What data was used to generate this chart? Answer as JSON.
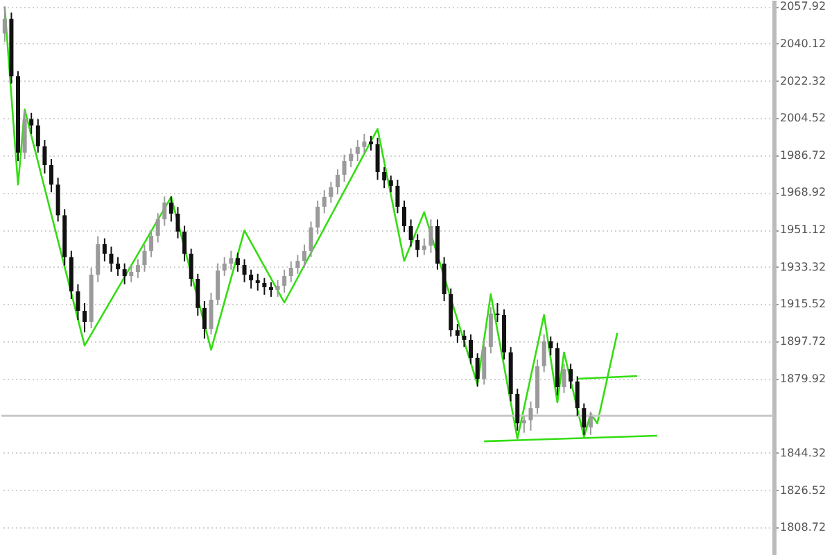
{
  "chart_data": {
    "type": "candlestick",
    "categories": [
      null,
      null,
      null,
      null,
      null,
      null,
      null,
      null,
      null,
      null,
      null,
      null,
      null,
      null,
      null,
      null,
      null,
      null,
      null,
      null,
      null,
      null,
      null,
      null,
      null,
      null,
      null,
      null,
      null,
      null,
      null,
      null,
      null,
      null,
      null,
      null,
      null,
      null,
      null,
      null,
      null,
      null,
      null,
      null,
      null,
      null,
      null,
      null,
      null,
      null,
      null,
      null,
      null,
      null,
      null,
      null,
      null,
      null,
      null,
      null,
      null,
      null,
      null,
      null,
      null,
      null,
      null,
      null,
      null,
      null,
      null,
      null,
      null,
      null,
      null,
      null,
      null,
      null,
      null,
      null,
      null,
      null,
      null,
      null,
      null,
      null,
      null,
      null,
      null,
      null,
      null,
      null,
      null,
      null,
      null,
      null,
      null,
      null,
      null,
      null,
      null,
      null,
      null,
      null,
      null,
      null,
      null,
      null,
      null,
      null,
      null,
      null,
      null,
      null,
      null,
      null
    ],
    "ohlc": [
      [
        2045,
        2058,
        2041,
        2052
      ],
      [
        2052,
        2055,
        2021,
        2024.5
      ],
      [
        2024.5,
        2027,
        1984,
        1988
      ],
      [
        1988,
        2008,
        1985,
        2004
      ],
      [
        2004,
        2007,
        1997,
        2001
      ],
      [
        2001,
        2004,
        1988,
        1991
      ],
      [
        1991,
        1994,
        1978,
        1982
      ],
      [
        1982,
        1985,
        1969,
        1972.7
      ],
      [
        1972.7,
        1976,
        1955,
        1958
      ],
      [
        1958,
        1961,
        1934,
        1938
      ],
      [
        1938,
        1941,
        1918,
        1921.6
      ],
      [
        1921.6,
        1925,
        1908,
        1912.3
      ],
      [
        1912.3,
        1916,
        1902,
        1907
      ],
      [
        1907,
        1933,
        1904,
        1929.6
      ],
      [
        1929.6,
        1948,
        1926,
        1944.2
      ],
      [
        1944.2,
        1947,
        1936,
        1939.6
      ],
      [
        1939.6,
        1943,
        1931,
        1934.9
      ],
      [
        1934.9,
        1938,
        1929,
        1932.2
      ],
      [
        1932.2,
        1935,
        1925,
        1928.9
      ],
      [
        1928.9,
        1934,
        1926,
        1930.9
      ],
      [
        1930.9,
        1937,
        1928,
        1934.2
      ],
      [
        1934.2,
        1944,
        1931,
        1940.9
      ],
      [
        1940.9,
        1951,
        1938,
        1948.2
      ],
      [
        1948.2,
        1959,
        1945,
        1956.1
      ],
      [
        1956.1,
        1967,
        1953,
        1964.1
      ],
      [
        1964.1,
        1967,
        1955,
        1958.8
      ],
      [
        1958.8,
        1962,
        1947,
        1950.2
      ],
      [
        1950.2,
        1953,
        1936,
        1939.6
      ],
      [
        1939.6,
        1942,
        1924,
        1927.6
      ],
      [
        1927.6,
        1930,
        1910,
        1913.7
      ],
      [
        1913.7,
        1917,
        1899,
        1903.7
      ],
      [
        1903.7,
        1921,
        1901,
        1917.6
      ],
      [
        1917.6,
        1935,
        1915,
        1931.6
      ],
      [
        1931.6,
        1938,
        1929,
        1934.9
      ],
      [
        1934.9,
        1941,
        1932,
        1937.5
      ],
      [
        1937.5,
        1940,
        1931,
        1934.2
      ],
      [
        1934.2,
        1937,
        1926,
        1929.6
      ],
      [
        1929.6,
        1932,
        1923,
        1926.9
      ],
      [
        1926.9,
        1930,
        1922,
        1925.6
      ],
      [
        1925.6,
        1928,
        1920,
        1923.6
      ],
      [
        1923.6,
        1926,
        1919,
        1922.3
      ],
      [
        1922.3,
        1927,
        1919,
        1924.3
      ],
      [
        1924.3,
        1932,
        1921,
        1928.9
      ],
      [
        1928.9,
        1936,
        1926,
        1932.9
      ],
      [
        1932.9,
        1939,
        1930,
        1936.2
      ],
      [
        1936.2,
        1944,
        1933,
        1940.9
      ],
      [
        1940.9,
        1955,
        1938,
        1952.2
      ],
      [
        1952.2,
        1965,
        1949,
        1962.1
      ],
      [
        1962.1,
        1970,
        1959,
        1966.8
      ],
      [
        1966.8,
        1974,
        1964,
        1971.4
      ],
      [
        1971.4,
        1980,
        1968,
        1977.4
      ],
      [
        1977.4,
        1987,
        1974,
        1984
      ],
      [
        1984,
        1990,
        1981,
        1987.4
      ],
      [
        1987.4,
        1994,
        1984,
        1990.7
      ],
      [
        1990.7,
        1997,
        1988,
        1993.3
      ],
      [
        1993.3,
        1996,
        1989,
        1992
      ],
      [
        1992,
        1995,
        1975,
        1978.7
      ],
      [
        1978.7,
        1981,
        1971,
        1974.7
      ],
      [
        1974.7,
        1977,
        1969,
        1972.1
      ],
      [
        1972.1,
        1975,
        1959,
        1962.1
      ],
      [
        1962.1,
        1965,
        1950,
        1952.8
      ],
      [
        1952.8,
        1956,
        1943,
        1946.2
      ],
      [
        1946.2,
        1949,
        1938,
        1941.5
      ],
      [
        1941.5,
        1947,
        1939,
        1943.5
      ],
      [
        1943.5,
        1956,
        1940,
        1952.8
      ],
      [
        1952.8,
        1956,
        1932,
        1934.9
      ],
      [
        1934.9,
        1938,
        1917,
        1920.3
      ],
      [
        1920.3,
        1923,
        1900,
        1903
      ],
      [
        1903,
        1906,
        1897,
        1900.4
      ],
      [
        1900.4,
        1903,
        1895,
        1898.4
      ],
      [
        1898.4,
        1901,
        1887,
        1889.8
      ],
      [
        1889.8,
        1892,
        1876,
        1879.8
      ],
      [
        1879.8,
        1898,
        1877,
        1895.1
      ],
      [
        1895.1,
        1914,
        1892,
        1911
      ],
      [
        1911,
        1916,
        1907,
        1910.3
      ],
      [
        1910.3,
        1913,
        1889,
        1892.4
      ],
      [
        1892.4,
        1895,
        1869,
        1872.5
      ],
      [
        1872.5,
        1875,
        1855,
        1858.5
      ],
      [
        1858.5,
        1862,
        1854,
        1860
      ],
      [
        1860,
        1869,
        1855,
        1865.8
      ],
      [
        1865.8,
        1889,
        1863,
        1885.8
      ],
      [
        1885.8,
        1901,
        1883,
        1897.7
      ],
      [
        1897.7,
        1900,
        1891,
        1894.4
      ],
      [
        1894.4,
        1897,
        1872,
        1875.8
      ],
      [
        1875.8,
        1887,
        1873,
        1884.4
      ],
      [
        1884.4,
        1887,
        1875,
        1878.5
      ],
      [
        1878.5,
        1881,
        1862,
        1865.8
      ],
      [
        1865.8,
        1868,
        1853,
        1856.5
      ],
      [
        1856.5,
        1864,
        1853,
        1861.9
      ],
      null,
      null,
      null,
      null,
      null,
      null,
      null,
      null,
      null,
      null,
      null,
      null,
      null,
      null,
      null,
      null,
      null,
      null,
      null,
      null,
      null,
      null,
      null,
      null,
      null,
      null,
      null
    ],
    "ylim": [
      1795.5,
      2061
    ],
    "yticks": [
      1808.72,
      1826.52,
      1844.32,
      1879.92,
      1897.72,
      1915.52,
      1933.32,
      1951.12,
      1968.92,
      1986.72,
      2004.52,
      2022.32,
      2040.12,
      2057.92
    ],
    "tick_labels": "y",
    "grid": "y",
    "ref_lines": [
      {
        "axis": "y",
        "value": 1862.12,
        "color": "#c8c8c8"
      }
    ],
    "series": [
      {
        "type": "line",
        "color": "#33dd11",
        "values": [
          2057.7,
          null,
          1972.7,
          2008.6,
          null,
          null,
          null,
          null,
          null,
          null,
          null,
          null,
          1895.7,
          null,
          null,
          null,
          null,
          null,
          null,
          null,
          null,
          null,
          null,
          null,
          null,
          1966.8,
          null,
          null,
          null,
          null,
          null,
          1893.7,
          null,
          null,
          null,
          null,
          1950.8,
          null,
          null,
          null,
          null,
          null,
          1916.3,
          null,
          null,
          null,
          null,
          null,
          null,
          null,
          null,
          null,
          null,
          null,
          null,
          null,
          1999.3,
          null,
          null,
          null,
          1936.2,
          null,
          null,
          1959.5,
          null,
          null,
          null,
          null,
          null,
          null,
          null,
          1877.1,
          null,
          1920.3,
          null,
          null,
          null,
          1851.2,
          null,
          null,
          null,
          1910.3,
          null,
          1868.5,
          1892.4,
          null,
          null,
          1851.9,
          1863.2,
          1858.5,
          null,
          null,
          1901.7,
          null,
          null,
          null,
          null,
          null,
          null,
          null,
          null,
          null,
          null,
          null,
          null,
          null,
          null,
          null,
          null,
          null,
          null,
          null,
          null,
          null,
          null,
          null
        ]
      },
      {
        "type": "line",
        "color": "#33dd11",
        "values": [
          null,
          null,
          null,
          null,
          null,
          null,
          null,
          null,
          null,
          null,
          null,
          null,
          null,
          null,
          null,
          null,
          null,
          null,
          null,
          null,
          null,
          null,
          null,
          null,
          null,
          null,
          null,
          null,
          null,
          null,
          null,
          null,
          null,
          null,
          null,
          null,
          null,
          null,
          null,
          null,
          null,
          null,
          null,
          null,
          null,
          null,
          null,
          null,
          null,
          null,
          null,
          null,
          null,
          null,
          null,
          null,
          null,
          null,
          null,
          null,
          null,
          null,
          null,
          null,
          null,
          null,
          null,
          null,
          null,
          null,
          null,
          null,
          null,
          null,
          null,
          null,
          null,
          null,
          null,
          null,
          null,
          null,
          null,
          null,
          null,
          null,
          1879.8,
          null,
          null,
          null,
          null,
          null,
          null,
          null,
          null,
          1881.1,
          null,
          null,
          null,
          null,
          null,
          null,
          null,
          null,
          null,
          null,
          null,
          null,
          null,
          null,
          null,
          null,
          null,
          null,
          null,
          null
        ]
      },
      {
        "type": "line",
        "color": "#33dd11",
        "values": [
          null,
          null,
          null,
          null,
          null,
          null,
          null,
          null,
          null,
          null,
          null,
          null,
          null,
          null,
          null,
          null,
          null,
          null,
          null,
          null,
          null,
          null,
          null,
          null,
          null,
          null,
          null,
          null,
          null,
          null,
          null,
          null,
          null,
          null,
          null,
          null,
          null,
          null,
          null,
          null,
          null,
          null,
          null,
          null,
          null,
          null,
          null,
          null,
          null,
          null,
          null,
          null,
          null,
          null,
          null,
          null,
          null,
          null,
          null,
          null,
          null,
          null,
          null,
          null,
          null,
          null,
          null,
          null,
          null,
          null,
          null,
          null,
          1849.9,
          null,
          null,
          null,
          null,
          null,
          null,
          null,
          null,
          null,
          null,
          null,
          null,
          null,
          null,
          null,
          null,
          null,
          null,
          null,
          null,
          null,
          null,
          null,
          null,
          null,
          1852.6,
          null,
          null,
          null,
          null,
          null,
          null,
          null,
          null,
          null,
          null,
          null,
          null,
          null,
          null,
          null,
          null,
          null
        ]
      }
    ]
  }
}
